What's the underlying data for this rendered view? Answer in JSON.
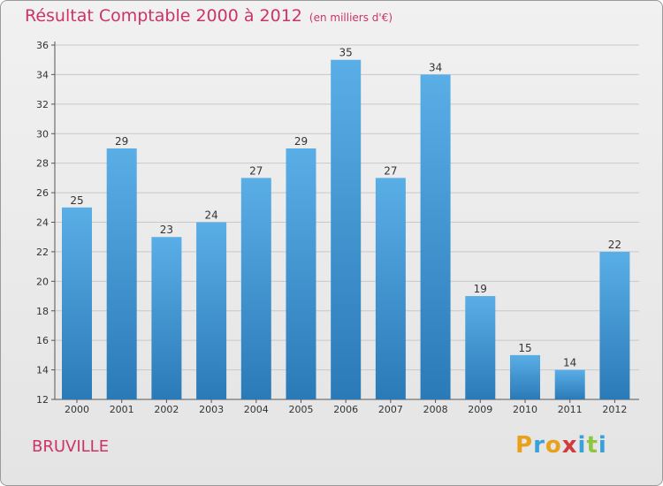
{
  "title": "Résultat Comptable 2000 à 2012",
  "subtitle": "(en milliers d'€)",
  "commune": "BRUVILLE",
  "logo_text": "Proxiti",
  "colors": {
    "title": "#cc3366",
    "bar_top": "#5aaee6",
    "bar_bottom": "#2a7ab8",
    "grid": "#c8c8c8",
    "logo": [
      "#e8a21a",
      "#3aa0d8",
      "#e8a21a",
      "#d03b3b",
      "#3aa0d8",
      "#8dc63f",
      "#3aa0d8"
    ]
  },
  "chart_data": {
    "type": "bar",
    "title": "Résultat Comptable 2000 à 2012",
    "subtitle": "(en milliers d'€)",
    "xlabel": "",
    "ylabel": "",
    "categories": [
      "2000",
      "2001",
      "2002",
      "2003",
      "2004",
      "2005",
      "2006",
      "2007",
      "2008",
      "2009",
      "2010",
      "2011",
      "2012"
    ],
    "values": [
      25,
      29,
      23,
      24,
      27,
      29,
      35,
      27,
      34,
      19,
      15,
      14,
      22
    ],
    "ylim": [
      12,
      36
    ],
    "yticks": [
      12,
      14,
      16,
      18,
      20,
      22,
      24,
      26,
      28,
      30,
      32,
      34,
      36
    ],
    "grid": true
  }
}
